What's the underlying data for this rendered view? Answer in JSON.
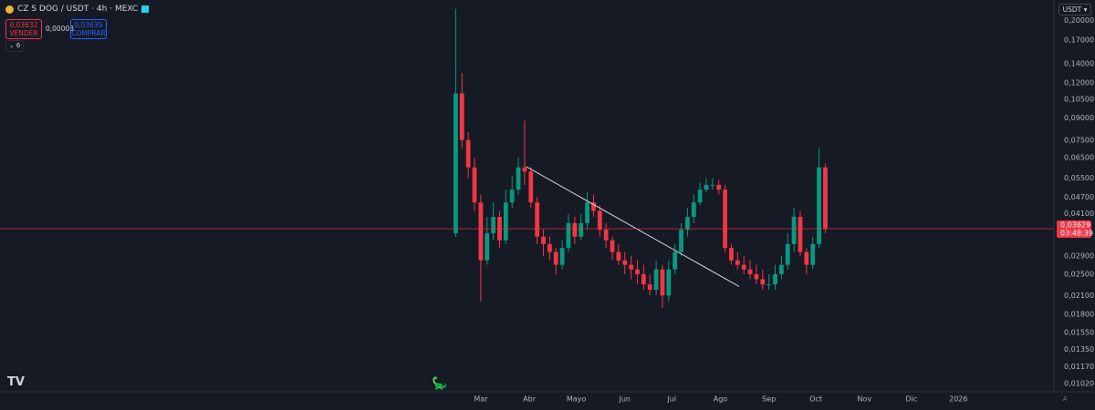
{
  "header": {
    "symbol": "CZ S DOG / USDT · 4h · MEXC",
    "sell_price": "0,03632",
    "sell_label": "VENDER",
    "spread": "0,00003",
    "buy_price": "0,03635",
    "buy_label": "COMPRAR",
    "indicators_count": "6",
    "currency": "USDT",
    "auto_label": "A"
  },
  "chart_data": {
    "type": "candlestick",
    "log_scale": true,
    "grid": false,
    "up_color": "#089981",
    "down_color": "#f23645",
    "trendline_color": "#d1d4dc",
    "xlim": [
      -247,
      426
    ],
    "xticks": [
      {
        "value": 60,
        "label": "Mar"
      },
      {
        "value": 91,
        "label": "Abr"
      },
      {
        "value": 121,
        "label": "Mayo"
      },
      {
        "value": 152,
        "label": "Jun"
      },
      {
        "value": 182,
        "label": "Jul"
      },
      {
        "value": 213,
        "label": "Ago"
      },
      {
        "value": 244,
        "label": "Sep"
      },
      {
        "value": 274,
        "label": "Oct"
      },
      {
        "value": 305,
        "label": "Nov"
      },
      {
        "value": 335,
        "label": "Dic"
      },
      {
        "value": 365,
        "label": "2026"
      }
    ],
    "ylim": [
      0.00954,
      0.2365
    ],
    "yticks": [
      {
        "value": 0.2,
        "label": "0,20000"
      },
      {
        "value": 0.17,
        "label": "0,17000"
      },
      {
        "value": 0.14,
        "label": "0,14000"
      },
      {
        "value": 0.12,
        "label": "0,12000"
      },
      {
        "value": 0.105,
        "label": "0,10500"
      },
      {
        "value": 0.09,
        "label": "0,09000"
      },
      {
        "value": 0.075,
        "label": "0,07500"
      },
      {
        "value": 0.065,
        "label": "0,06500"
      },
      {
        "value": 0.055,
        "label": "0,05500"
      },
      {
        "value": 0.047,
        "label": "0,04700"
      },
      {
        "value": 0.041,
        "label": "0,04100"
      },
      {
        "value": 0.029,
        "label": "0,02900"
      },
      {
        "value": 0.025,
        "label": "0,02500"
      },
      {
        "value": 0.021,
        "label": "0,02100"
      },
      {
        "value": 0.018,
        "label": "0,01800"
      },
      {
        "value": 0.0155,
        "label": "0,01550"
      },
      {
        "value": 0.0135,
        "label": "0,01350"
      },
      {
        "value": 0.0117,
        "label": "0,01170"
      },
      {
        "value": 0.0102,
        "label": "0,01020"
      }
    ],
    "last_price": {
      "value": 0.03629,
      "label": "0,03629"
    },
    "countdown": "03:48:39",
    "x": [
      44,
      48,
      52,
      56,
      60,
      64,
      68,
      72,
      76,
      80,
      84,
      88,
      92,
      96,
      100,
      104,
      108,
      112,
      116,
      120,
      124,
      128,
      132,
      136,
      140,
      144,
      148,
      152,
      156,
      160,
      164,
      168,
      172,
      176,
      180,
      184,
      188,
      192,
      196,
      200,
      204,
      208,
      212,
      216,
      220,
      224,
      228,
      232,
      236,
      240,
      244,
      248,
      252,
      256,
      260,
      264,
      268,
      272,
      276,
      280
    ],
    "open": [
      0.035,
      0.11,
      0.075,
      0.06,
      0.045,
      0.028,
      0.035,
      0.04,
      0.033,
      0.045,
      0.05,
      0.06,
      0.058,
      0.045,
      0.034,
      0.032,
      0.03,
      0.027,
      0.031,
      0.038,
      0.034,
      0.038,
      0.045,
      0.042,
      0.036,
      0.033,
      0.03,
      0.028,
      0.027,
      0.026,
      0.025,
      0.023,
      0.022,
      0.026,
      0.021,
      0.026,
      0.03,
      0.036,
      0.04,
      0.045,
      0.05,
      0.052,
      0.052,
      0.05,
      0.031,
      0.028,
      0.027,
      0.026,
      0.025,
      0.024,
      0.023,
      0.023,
      0.025,
      0.027,
      0.032,
      0.04,
      0.03,
      0.027,
      0.032,
      0.06
    ],
    "high": [
      0.22,
      0.13,
      0.08,
      0.065,
      0.048,
      0.04,
      0.045,
      0.042,
      0.05,
      0.056,
      0.065,
      0.088,
      0.06,
      0.047,
      0.036,
      0.034,
      0.031,
      0.033,
      0.041,
      0.04,
      0.041,
      0.049,
      0.048,
      0.044,
      0.038,
      0.034,
      0.032,
      0.03,
      0.029,
      0.028,
      0.027,
      0.025,
      0.028,
      0.027,
      0.028,
      0.032,
      0.038,
      0.043,
      0.048,
      0.053,
      0.055,
      0.055,
      0.054,
      0.052,
      0.032,
      0.03,
      0.029,
      0.028,
      0.027,
      0.026,
      0.025,
      0.027,
      0.029,
      0.035,
      0.043,
      0.042,
      0.031,
      0.034,
      0.07,
      0.062
    ],
    "low": [
      0.034,
      0.07,
      0.055,
      0.042,
      0.02,
      0.027,
      0.033,
      0.031,
      0.032,
      0.043,
      0.048,
      0.052,
      0.043,
      0.032,
      0.029,
      0.028,
      0.025,
      0.026,
      0.03,
      0.032,
      0.033,
      0.036,
      0.04,
      0.034,
      0.031,
      0.028,
      0.027,
      0.025,
      0.024,
      0.023,
      0.022,
      0.021,
      0.021,
      0.019,
      0.02,
      0.025,
      0.029,
      0.034,
      0.038,
      0.044,
      0.049,
      0.05,
      0.048,
      0.03,
      0.027,
      0.026,
      0.025,
      0.024,
      0.023,
      0.022,
      0.022,
      0.022,
      0.024,
      0.026,
      0.03,
      0.029,
      0.025,
      0.026,
      0.031,
      0.035
    ],
    "close": [
      0.11,
      0.075,
      0.06,
      0.045,
      0.028,
      0.035,
      0.04,
      0.033,
      0.045,
      0.05,
      0.06,
      0.058,
      0.045,
      0.034,
      0.032,
      0.03,
      0.027,
      0.031,
      0.038,
      0.034,
      0.038,
      0.045,
      0.042,
      0.036,
      0.033,
      0.03,
      0.028,
      0.027,
      0.026,
      0.025,
      0.023,
      0.022,
      0.026,
      0.021,
      0.026,
      0.03,
      0.036,
      0.04,
      0.045,
      0.05,
      0.052,
      0.052,
      0.05,
      0.031,
      0.028,
      0.027,
      0.026,
      0.025,
      0.024,
      0.023,
      0.023,
      0.025,
      0.027,
      0.032,
      0.04,
      0.03,
      0.027,
      0.032,
      0.06,
      0.0363
    ],
    "trendline": {
      "x": [
        89,
        225
      ],
      "y": [
        0.0604,
        0.0226
      ]
    }
  }
}
